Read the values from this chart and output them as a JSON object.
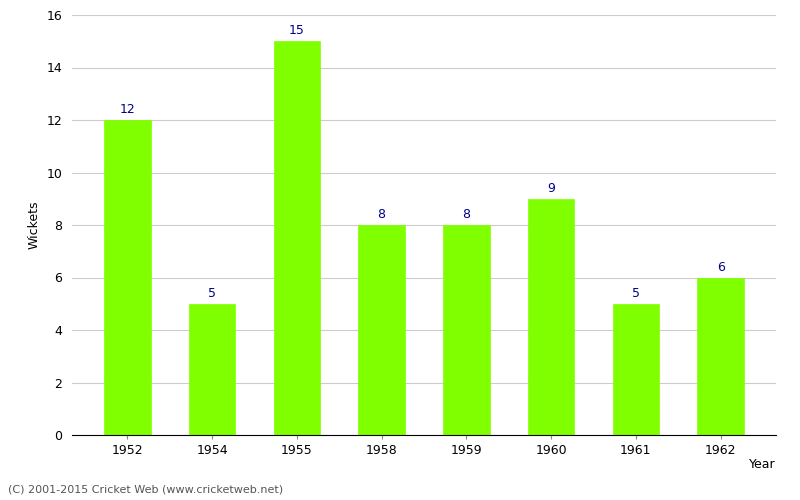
{
  "years": [
    "1952",
    "1954",
    "1955",
    "1958",
    "1959",
    "1960",
    "1961",
    "1962"
  ],
  "wickets": [
    12,
    5,
    15,
    8,
    8,
    9,
    5,
    6
  ],
  "bar_color": "#7fff00",
  "bar_edge_color": "#7fff00",
  "xlabel": "Year",
  "ylabel": "Wickets",
  "ylim": [
    0,
    16
  ],
  "yticks": [
    0,
    2,
    4,
    6,
    8,
    10,
    12,
    14,
    16
  ],
  "label_color": "#00008b",
  "label_fontsize": 9,
  "axis_label_fontsize": 9,
  "tick_fontsize": 9,
  "footer_text": "(C) 2001-2015 Cricket Web (www.cricketweb.net)",
  "footer_fontsize": 8,
  "background_color": "#ffffff",
  "grid_color": "#cccccc"
}
